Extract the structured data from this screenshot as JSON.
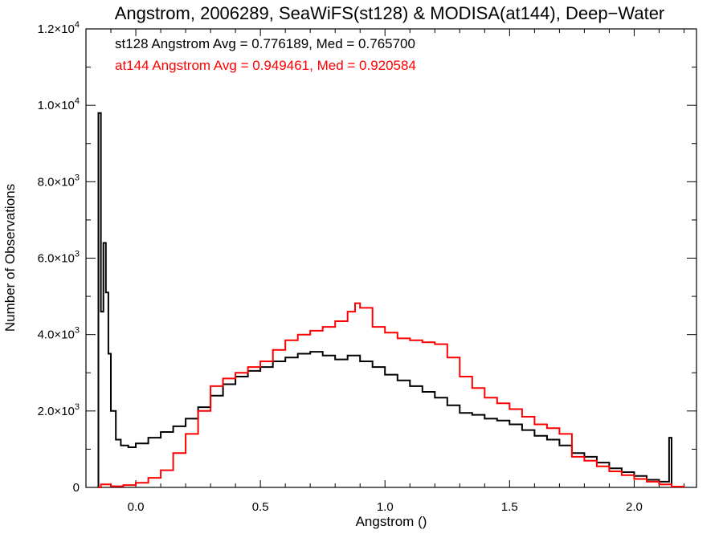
{
  "chart_data": {
    "type": "line",
    "title": "Angstrom, 2006289, SeaWiFS(st128) & MODISA(at144), Deep−Water",
    "xlabel": "Angstrom ()",
    "ylabel": "Number of Observations",
    "xlim": [
      -0.2,
      2.25
    ],
    "ylim": [
      0,
      12000
    ],
    "x_ticks": [
      {
        "value": 0.0,
        "label": "0.0"
      },
      {
        "value": 0.5,
        "label": "0.5"
      },
      {
        "value": 1.0,
        "label": "1.0"
      },
      {
        "value": 1.5,
        "label": "1.5"
      },
      {
        "value": 2.0,
        "label": "2.0"
      }
    ],
    "y_ticks": [
      {
        "value": 0,
        "mant": "0",
        "exp": ""
      },
      {
        "value": 2000,
        "mant": "2.0×10",
        "exp": "3"
      },
      {
        "value": 4000,
        "mant": "4.0×10",
        "exp": "3"
      },
      {
        "value": 6000,
        "mant": "6.0×10",
        "exp": "3"
      },
      {
        "value": 8000,
        "mant": "8.0×10",
        "exp": "3"
      },
      {
        "value": 10000,
        "mant": "1.0×10",
        "exp": "4"
      },
      {
        "value": 12000,
        "mant": "1.2×10",
        "exp": "4"
      }
    ],
    "annotations": [
      {
        "text": "st128 Angstrom Avg = 0.776189, Med = 0.765700",
        "color": "#000000"
      },
      {
        "text": "at144 Angstrom Avg = 0.949461, Med = 0.920584",
        "color": "#ff0000"
      }
    ],
    "series": [
      {
        "color": "#000000",
        "points": [
          [
            -0.15,
            0
          ],
          [
            -0.15,
            9800
          ],
          [
            -0.14,
            4600
          ],
          [
            -0.13,
            6400
          ],
          [
            -0.12,
            5100
          ],
          [
            -0.11,
            3500
          ],
          [
            -0.1,
            2000
          ],
          [
            -0.08,
            1250
          ],
          [
            -0.06,
            1100
          ],
          [
            -0.03,
            1050
          ],
          [
            0.0,
            1150
          ],
          [
            0.05,
            1300
          ],
          [
            0.1,
            1450
          ],
          [
            0.15,
            1600
          ],
          [
            0.2,
            1800
          ],
          [
            0.25,
            2100
          ],
          [
            0.3,
            2400
          ],
          [
            0.35,
            2700
          ],
          [
            0.4,
            2900
          ],
          [
            0.45,
            3050
          ],
          [
            0.5,
            3150
          ],
          [
            0.55,
            3300
          ],
          [
            0.6,
            3400
          ],
          [
            0.65,
            3500
          ],
          [
            0.7,
            3550
          ],
          [
            0.75,
            3450
          ],
          [
            0.8,
            3350
          ],
          [
            0.85,
            3450
          ],
          [
            0.9,
            3300
          ],
          [
            0.95,
            3150
          ],
          [
            1.0,
            2950
          ],
          [
            1.05,
            2800
          ],
          [
            1.1,
            2650
          ],
          [
            1.15,
            2500
          ],
          [
            1.2,
            2350
          ],
          [
            1.25,
            2150
          ],
          [
            1.3,
            1950
          ],
          [
            1.35,
            1900
          ],
          [
            1.4,
            1800
          ],
          [
            1.45,
            1750
          ],
          [
            1.5,
            1650
          ],
          [
            1.55,
            1500
          ],
          [
            1.6,
            1350
          ],
          [
            1.65,
            1250
          ],
          [
            1.7,
            1100
          ],
          [
            1.75,
            900
          ],
          [
            1.8,
            800
          ],
          [
            1.85,
            650
          ],
          [
            1.9,
            500
          ],
          [
            1.95,
            400
          ],
          [
            2.0,
            300
          ],
          [
            2.05,
            200
          ],
          [
            2.1,
            150
          ],
          [
            2.13,
            150
          ],
          [
            2.14,
            1300
          ],
          [
            2.15,
            0
          ]
        ]
      },
      {
        "color": "#ff0000",
        "points": [
          [
            -0.15,
            0
          ],
          [
            -0.14,
            80
          ],
          [
            -0.1,
            30
          ],
          [
            -0.05,
            60
          ],
          [
            0.0,
            120
          ],
          [
            0.05,
            250
          ],
          [
            0.1,
            450
          ],
          [
            0.15,
            900
          ],
          [
            0.2,
            1400
          ],
          [
            0.25,
            2000
          ],
          [
            0.3,
            2650
          ],
          [
            0.35,
            2850
          ],
          [
            0.4,
            3000
          ],
          [
            0.45,
            3150
          ],
          [
            0.5,
            3300
          ],
          [
            0.55,
            3600
          ],
          [
            0.6,
            3850
          ],
          [
            0.65,
            4000
          ],
          [
            0.7,
            4100
          ],
          [
            0.75,
            4200
          ],
          [
            0.8,
            4350
          ],
          [
            0.85,
            4600
          ],
          [
            0.88,
            4820
          ],
          [
            0.9,
            4700
          ],
          [
            0.95,
            4200
          ],
          [
            1.0,
            4050
          ],
          [
            1.05,
            3900
          ],
          [
            1.1,
            3850
          ],
          [
            1.15,
            3800
          ],
          [
            1.2,
            3750
          ],
          [
            1.25,
            3400
          ],
          [
            1.3,
            2900
          ],
          [
            1.35,
            2600
          ],
          [
            1.4,
            2350
          ],
          [
            1.45,
            2200
          ],
          [
            1.5,
            2050
          ],
          [
            1.55,
            1850
          ],
          [
            1.6,
            1650
          ],
          [
            1.65,
            1550
          ],
          [
            1.7,
            1400
          ],
          [
            1.75,
            800
          ],
          [
            1.8,
            700
          ],
          [
            1.85,
            550
          ],
          [
            1.9,
            420
          ],
          [
            1.95,
            320
          ],
          [
            2.0,
            220
          ],
          [
            2.05,
            150
          ],
          [
            2.1,
            80
          ],
          [
            2.15,
            20
          ],
          [
            2.2,
            0
          ]
        ]
      }
    ]
  }
}
